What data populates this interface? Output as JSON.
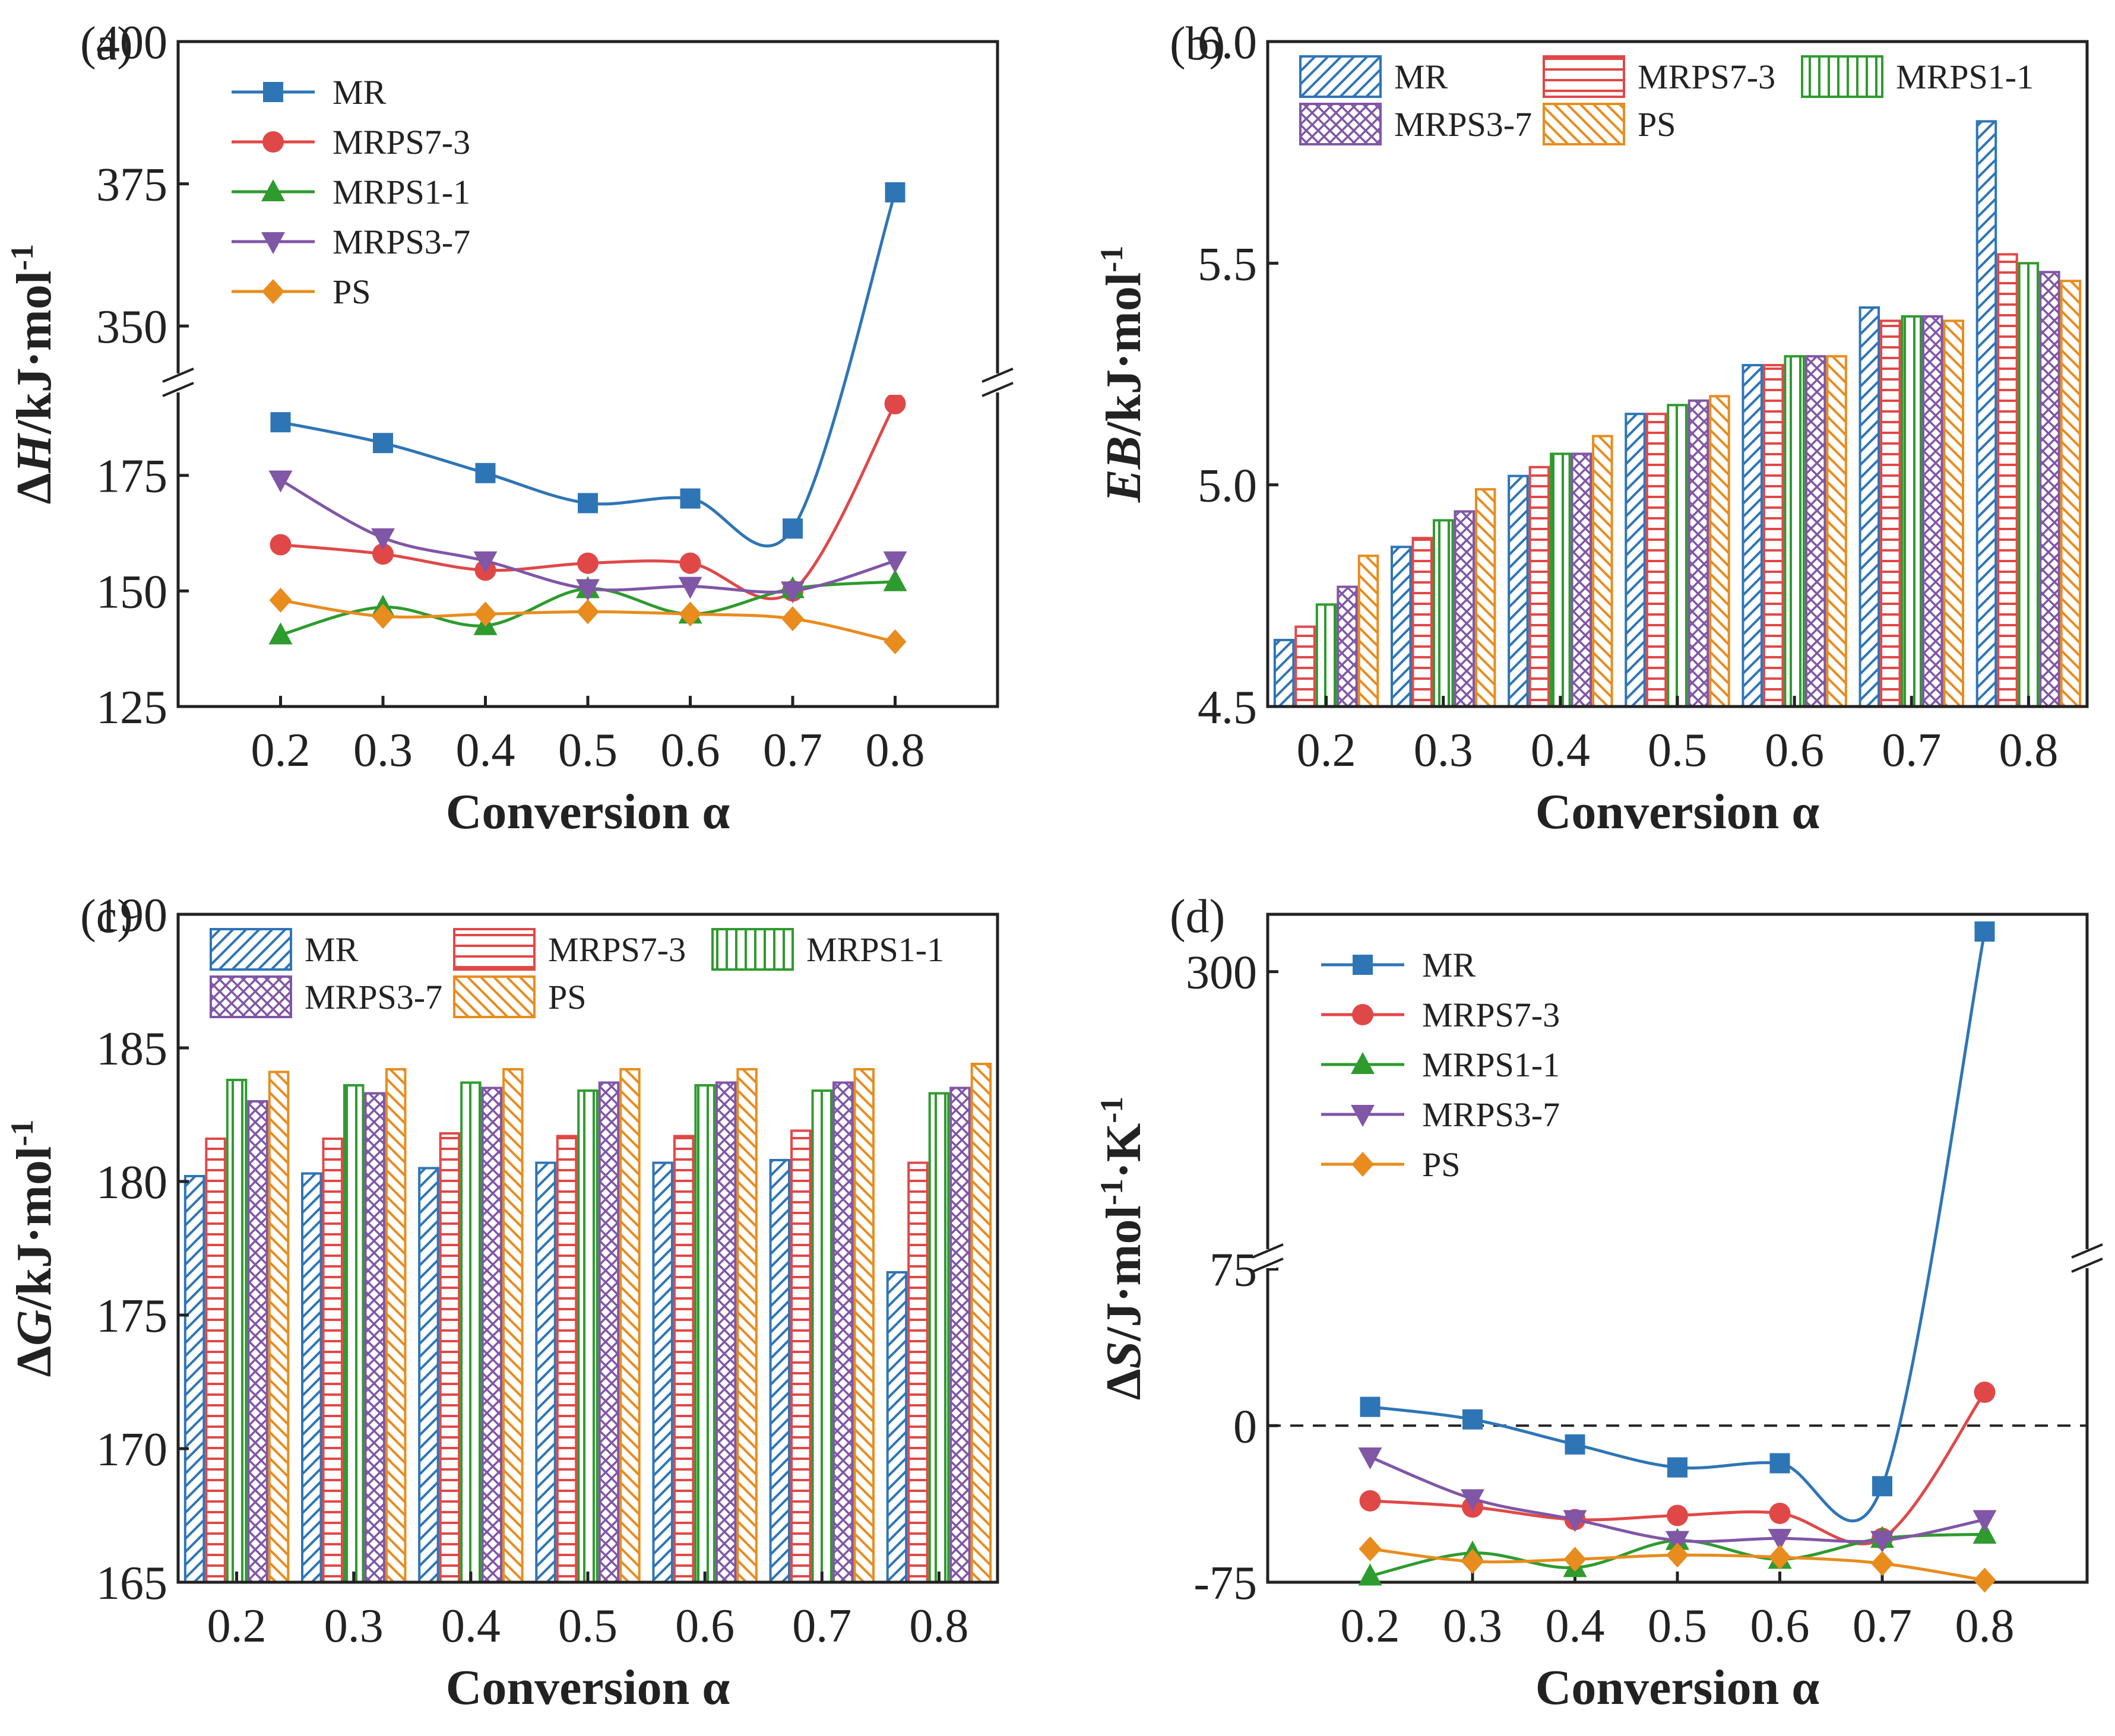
{
  "series_names": [
    "MR",
    "MRPS7-3",
    "MRPS1-1",
    "MRPS3-7",
    "PS"
  ],
  "colors": [
    "#2e75b6",
    "#e04848",
    "#2e9b2e",
    "#8056a6",
    "#e88c1e"
  ],
  "markers": [
    "square",
    "circle",
    "triangle-up",
    "triangle-down",
    "diamond"
  ],
  "chart_data": [
    {
      "panel": "(a)",
      "type": "line",
      "xlabel": "Conversion α",
      "ylabel": "ΔH/kJ·mol-1",
      "ylabel_parts": [
        "Δ",
        "H",
        "/kJ·mol",
        "-1"
      ],
      "x": [
        0.2,
        0.3,
        0.4,
        0.5,
        0.6,
        0.7,
        0.8
      ],
      "xtick_labels": [
        "0.2",
        "0.3",
        "0.4",
        "0.5",
        "0.6",
        "0.7",
        "0.8"
      ],
      "axis_break": true,
      "ylim_lower": [
        125,
        195
      ],
      "ylim_upper": [
        340,
        400
      ],
      "yticks_lower": [
        "125",
        "150",
        "175"
      ],
      "yticks_upper": [
        "350",
        "375",
        "400"
      ],
      "legend_loc": "top-left",
      "series": [
        {
          "name": "MR",
          "values": [
            186.5,
            182,
            175.5,
            169,
            170,
            163.5,
            373.5
          ]
        },
        {
          "name": "MRPS7-3",
          "values": [
            160,
            158,
            154.5,
            156,
            156,
            150,
            190.5
          ]
        },
        {
          "name": "MRPS1-1",
          "values": [
            140.5,
            146.5,
            142.5,
            150.5,
            145,
            150.5,
            152
          ]
        },
        {
          "name": "MRPS3-7",
          "values": [
            174,
            161.5,
            156.5,
            150.5,
            151,
            150,
            156.5
          ]
        },
        {
          "name": "PS",
          "values": [
            148,
            144.5,
            145,
            145.5,
            145,
            144,
            139
          ]
        }
      ]
    },
    {
      "panel": "(b)",
      "type": "bar",
      "xlabel": "Conversion α",
      "ylabel": "EB/kJ·mol-1",
      "ylabel_parts": [
        "",
        "EB",
        "/kJ·mol",
        "-1"
      ],
      "categories": [
        "0.2",
        "0.3",
        "0.4",
        "0.5",
        "0.6",
        "0.7",
        "0.8"
      ],
      "ylim": [
        4.5,
        6.0
      ],
      "yticks": [
        "4.5",
        "5.0",
        "5.5",
        "6.0"
      ],
      "legend_loc": "top",
      "series": [
        {
          "name": "MR",
          "values": [
            4.65,
            4.86,
            5.02,
            5.16,
            5.27,
            5.4,
            5.82
          ]
        },
        {
          "name": "MRPS7-3",
          "values": [
            4.68,
            4.88,
            5.04,
            5.16,
            5.27,
            5.37,
            5.52
          ]
        },
        {
          "name": "MRPS1-1",
          "values": [
            4.73,
            4.92,
            5.07,
            5.18,
            5.29,
            5.38,
            5.5
          ]
        },
        {
          "name": "MRPS3-7",
          "values": [
            4.77,
            4.94,
            5.07,
            5.19,
            5.29,
            5.38,
            5.48
          ]
        },
        {
          "name": "PS",
          "values": [
            4.84,
            4.99,
            5.11,
            5.2,
            5.29,
            5.37,
            5.46
          ]
        }
      ]
    },
    {
      "panel": "(c)",
      "type": "bar",
      "xlabel": "Conversion α",
      "ylabel": "ΔG/kJ·mol-1",
      "ylabel_parts": [
        "Δ",
        "G",
        "/kJ·mol",
        "-1"
      ],
      "categories": [
        "0.2",
        "0.3",
        "0.4",
        "0.5",
        "0.6",
        "0.7",
        "0.8"
      ],
      "ylim": [
        165,
        190
      ],
      "yticks": [
        "165",
        "170",
        "175",
        "180",
        "185",
        "190"
      ],
      "legend_loc": "top",
      "series": [
        {
          "name": "MR",
          "values": [
            180.2,
            180.3,
            180.5,
            180.7,
            180.7,
            180.8,
            176.6
          ]
        },
        {
          "name": "MRPS7-3",
          "values": [
            181.6,
            181.6,
            181.8,
            181.7,
            181.7,
            181.9,
            180.7
          ]
        },
        {
          "name": "MRPS1-1",
          "values": [
            183.8,
            183.6,
            183.7,
            183.4,
            183.6,
            183.4,
            183.3
          ]
        },
        {
          "name": "MRPS3-7",
          "values": [
            183,
            183.3,
            183.5,
            183.7,
            183.7,
            183.7,
            183.5
          ]
        },
        {
          "name": "PS",
          "values": [
            184.1,
            184.2,
            184.2,
            184.2,
            184.2,
            184.2,
            184.4
          ]
        }
      ]
    },
    {
      "panel": "(d)",
      "type": "line",
      "xlabel": "Conversion α",
      "ylabel": "ΔS/J·mol-1·K-1",
      "ylabel_parts": [
        "Δ",
        "S",
        "/J·mol",
        "-1",
        "·K",
        "-1"
      ],
      "x": [
        0.2,
        0.3,
        0.4,
        0.5,
        0.6,
        0.7,
        0.8
      ],
      "xtick_labels": [
        "0.2",
        "0.3",
        "0.4",
        "0.5",
        "0.6",
        "0.7",
        "0.8"
      ],
      "axis_break": true,
      "ylim_lower": [
        -75,
        80
      ],
      "ylim_upper": [
        100,
        340
      ],
      "yticks_lower": [
        "-75",
        "0",
        "75"
      ],
      "yticks_upper": [
        "300"
      ],
      "zero_line": true,
      "legend_loc": "top-left",
      "series": [
        {
          "name": "MR",
          "values": [
            9,
            3,
            -9,
            -20,
            -18,
            -29,
            328
          ]
        },
        {
          "name": "MRPS7-3",
          "values": [
            -36,
            -39,
            -45,
            -43,
            -42,
            -54,
            16
          ]
        },
        {
          "name": "MRPS1-1",
          "values": [
            -72,
            -61,
            -68,
            -55,
            -64,
            -54,
            -52
          ]
        },
        {
          "name": "MRPS3-7",
          "values": [
            -15,
            -35,
            -45,
            -55,
            -54,
            -55,
            -45
          ]
        },
        {
          "name": "PS",
          "values": [
            -59,
            -65,
            -64,
            -62,
            -63,
            -66,
            -74
          ]
        }
      ]
    }
  ]
}
